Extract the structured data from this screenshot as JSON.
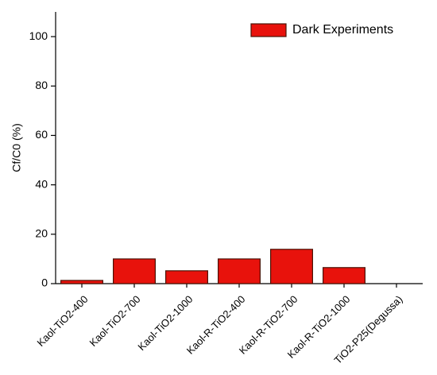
{
  "chart_data": {
    "type": "bar",
    "y_label": "Cf/C0 (%)",
    "categories": [
      "Kaol-TiO2-400",
      "Kaol-TiO2-700",
      "Kaol-TiO2-1000",
      "Kaol-R-TiO2-400",
      "Kaol-R-TiO2-700",
      "Kaol-R-TiO2-1000",
      "TiO2-P25(Degussa)"
    ],
    "series": [
      {
        "name": "Dark Experiments",
        "color": "#e8120c",
        "values": [
          1.3,
          10,
          5.2,
          10,
          13.9,
          6.5,
          0
        ]
      }
    ],
    "ylim": [
      0,
      110
    ],
    "yticks": [
      0,
      20,
      40,
      60,
      80,
      100
    ],
    "legend": "upper right"
  }
}
